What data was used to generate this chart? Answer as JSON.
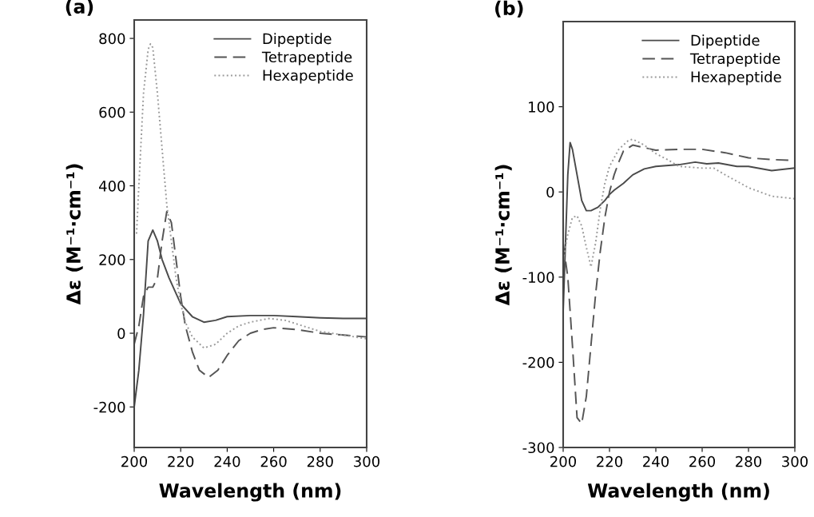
{
  "chart_data": [
    {
      "type": "line",
      "title": "(a)",
      "xlabel": "Wavelength (nm)",
      "ylabel": "Δε (M⁻¹·cm⁻¹)",
      "xlim": [
        200,
        300
      ],
      "xticks": [
        200,
        220,
        240,
        260,
        280,
        300
      ],
      "ylim": [
        -310,
        850
      ],
      "yticks": [
        -200,
        0,
        200,
        400,
        600,
        800
      ],
      "grid": false,
      "legend": "top right",
      "series": [
        {
          "name": "Dipeptide",
          "color": "#4a4a4a",
          "line_style": "solid",
          "x": [
            200,
            202,
            204,
            206,
            208,
            210,
            212,
            215,
            220,
            225,
            230,
            235,
            240,
            250,
            260,
            270,
            280,
            290,
            300
          ],
          "values": [
            -200,
            -100,
            50,
            250,
            280,
            250,
            200,
            150,
            80,
            45,
            30,
            35,
            45,
            48,
            48,
            45,
            42,
            40,
            40
          ]
        },
        {
          "name": "Tetrapeptide",
          "color": "#555555",
          "line_style": "dashed",
          "x": [
            200,
            202,
            204,
            206,
            208,
            210,
            212,
            214,
            216,
            218,
            220,
            222,
            225,
            228,
            232,
            236,
            240,
            245,
            250,
            255,
            260,
            270,
            280,
            290,
            300
          ],
          "values": [
            -30,
            20,
            100,
            125,
            125,
            150,
            250,
            330,
            300,
            200,
            100,
            20,
            -50,
            -100,
            -120,
            -100,
            -60,
            -20,
            0,
            10,
            15,
            10,
            0,
            -5,
            -10
          ]
        },
        {
          "name": "Hexapeptide",
          "color": "#9a9a9a",
          "line_style": "dotted",
          "x": [
            201,
            202,
            204,
            206,
            207,
            208,
            210,
            212,
            214,
            216,
            218,
            220,
            222,
            225,
            230,
            235,
            240,
            245,
            250,
            258,
            265,
            270,
            280,
            290,
            300
          ],
          "values": [
            270,
            400,
            650,
            770,
            785,
            775,
            650,
            500,
            350,
            250,
            150,
            80,
            30,
            -10,
            -40,
            -30,
            0,
            20,
            30,
            40,
            35,
            25,
            5,
            -5,
            -15
          ]
        }
      ]
    },
    {
      "type": "line",
      "title": "(b)",
      "xlabel": "Wavelength (nm)",
      "ylabel": "Δε (M⁻¹·cm⁻¹)",
      "xlim": [
        200,
        300
      ],
      "xticks": [
        200,
        220,
        240,
        260,
        280,
        300
      ],
      "ylim": [
        -300,
        200
      ],
      "yticks": [
        -300,
        -200,
        -100,
        0,
        100
      ],
      "grid": false,
      "legend": "top right",
      "series": [
        {
          "name": "Dipeptide",
          "color": "#4a4a4a",
          "line_style": "solid",
          "x": [
            200,
            201,
            202,
            203,
            204,
            206,
            208,
            210,
            212,
            215,
            218,
            220,
            222,
            226,
            230,
            235,
            240,
            250,
            257,
            262,
            267,
            275,
            280,
            290,
            300
          ],
          "values": [
            -140,
            -60,
            20,
            58,
            50,
            20,
            -10,
            -22,
            -22,
            -18,
            -10,
            -3,
            2,
            10,
            20,
            27,
            30,
            32,
            35,
            33,
            34,
            30,
            30,
            25,
            28
          ]
        },
        {
          "name": "Tetrapeptide",
          "color": "#555555",
          "line_style": "dashed",
          "x": [
            200,
            202,
            204,
            206,
            208,
            210,
            212,
            214,
            216,
            218,
            220,
            222,
            224,
            226,
            230,
            235,
            240,
            250,
            260,
            270,
            280,
            290,
            300
          ],
          "values": [
            -60,
            -100,
            -180,
            -265,
            -272,
            -240,
            -180,
            -120,
            -70,
            -30,
            0,
            20,
            35,
            48,
            55,
            52,
            49,
            50,
            50,
            46,
            40,
            38,
            37
          ]
        },
        {
          "name": "Hexapeptide",
          "color": "#9a9a9a",
          "line_style": "dotted",
          "x": [
            200,
            202,
            204,
            206,
            208,
            210,
            212,
            214,
            216,
            218,
            220,
            224,
            228,
            230,
            235,
            240,
            245,
            250,
            260,
            265,
            270,
            280,
            290,
            300
          ],
          "values": [
            -80,
            -50,
            -30,
            -28,
            -40,
            -65,
            -88,
            -60,
            -20,
            10,
            30,
            50,
            60,
            62,
            55,
            45,
            38,
            30,
            28,
            28,
            20,
            5,
            -5,
            -8
          ]
        }
      ]
    }
  ]
}
